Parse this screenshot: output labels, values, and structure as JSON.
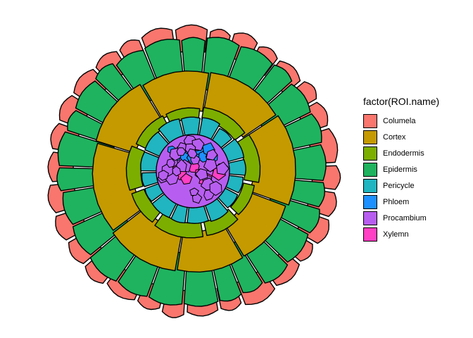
{
  "chart_data": {
    "type": "other",
    "description_kind": "segmented cell map (cross-section polygons filled by tissue class)",
    "legend_title": "factor(ROI.name)",
    "legend_placement": "right",
    "grid": false,
    "axes": false,
    "categories": [
      {
        "name": "Columela",
        "color": "#F8766D",
        "ring": "outer-bumps",
        "cell_count": 30
      },
      {
        "name": "Cortex",
        "color": "#C49A00",
        "ring": "cortex-ring",
        "cell_count": 8
      },
      {
        "name": "Endodermis",
        "color": "#7CAE00",
        "ring": "endodermis-ring",
        "cell_count": 9
      },
      {
        "name": "Epidermis",
        "color": "#1FB35F",
        "ring": "epidermis-ring",
        "cell_count": 26
      },
      {
        "name": "Pericycle",
        "color": "#20B5C0",
        "ring": "pericycle-ring",
        "cell_count": 16
      },
      {
        "name": "Phloem",
        "color": "#1E90FF",
        "ring": "core",
        "cell_count": 10
      },
      {
        "name": "Procambium",
        "color": "#B75EF0",
        "ring": "core",
        "cell_count": 30
      },
      {
        "name": "Xylemn",
        "color": "#FF3FC4",
        "ring": "core",
        "cell_count": 8
      }
    ]
  }
}
